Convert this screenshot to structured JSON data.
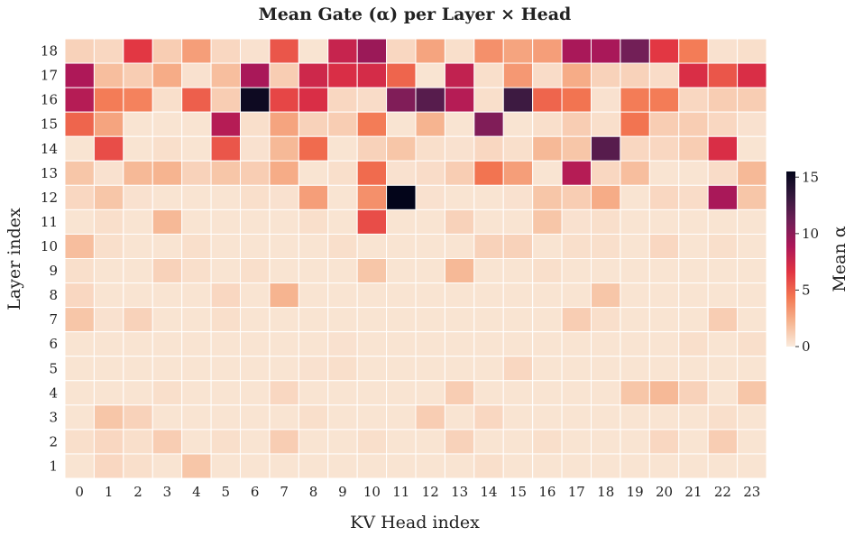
{
  "chart_data": {
    "type": "heatmap",
    "title": "Mean Gate (α) per Layer × Head",
    "xlabel": "KV Head index",
    "ylabel": "Layer index",
    "x_categories": [
      "0",
      "1",
      "2",
      "3",
      "4",
      "5",
      "6",
      "7",
      "8",
      "9",
      "10",
      "11",
      "12",
      "13",
      "14",
      "15",
      "16",
      "17",
      "18",
      "19",
      "20",
      "21",
      "22",
      "23"
    ],
    "y_categories": [
      "18",
      "17",
      "16",
      "15",
      "14",
      "13",
      "12",
      "11",
      "10",
      "9",
      "8",
      "7",
      "6",
      "5",
      "4",
      "3",
      "2",
      "1"
    ],
    "colorbar": {
      "label": "Mean α",
      "min": 0,
      "max": 15.5,
      "ticks": [
        "0",
        "5",
        "10",
        "15"
      ],
      "tick_values": [
        0,
        5,
        10,
        15
      ]
    },
    "colormap": [
      "#faebdd",
      "#f6b48f",
      "#f37651",
      "#e13342",
      "#ad1759",
      "#701f57",
      "#35193e",
      "#03051a"
    ],
    "grid_color": "#ffffff",
    "values": [
      [
        1.0,
        0.8,
        6.5,
        1.2,
        3.0,
        0.8,
        0.4,
        5.5,
        0.3,
        7.8,
        9.5,
        0.8,
        2.8,
        0.5,
        3.5,
        2.8,
        3.0,
        9.0,
        9.0,
        11.0,
        6.5,
        4.2,
        0.4,
        0.5
      ],
      [
        8.8,
        1.8,
        1.2,
        2.5,
        0.4,
        1.8,
        9.0,
        1.2,
        7.5,
        7.0,
        7.2,
        5.0,
        0.3,
        8.0,
        0.5,
        3.2,
        0.6,
        2.5,
        1.0,
        1.0,
        0.6,
        7.0,
        5.5,
        7.0
      ],
      [
        8.5,
        4.2,
        4.0,
        0.5,
        5.2,
        1.2,
        15.0,
        6.0,
        7.0,
        0.8,
        0.6,
        10.5,
        12.0,
        8.5,
        0.5,
        13.0,
        5.0,
        4.5,
        0.4,
        4.2,
        4.2,
        0.8,
        1.2,
        1.2
      ],
      [
        5.0,
        2.8,
        0.3,
        0.3,
        0.3,
        8.5,
        0.5,
        2.8,
        1.0,
        1.2,
        4.2,
        0.3,
        2.2,
        0.3,
        10.5,
        0.3,
        0.5,
        1.2,
        0.5,
        4.5,
        1.2,
        1.2,
        0.8,
        0.4
      ],
      [
        0.3,
        5.8,
        0.3,
        0.5,
        0.3,
        5.5,
        0.4,
        2.0,
        4.8,
        0.3,
        1.0,
        1.5,
        0.5,
        0.4,
        0.8,
        0.5,
        2.0,
        1.5,
        12.0,
        0.8,
        0.8,
        1.2,
        7.0,
        0.3
      ],
      [
        1.5,
        0.4,
        2.0,
        2.2,
        1.0,
        1.5,
        1.2,
        2.5,
        0.3,
        0.5,
        4.8,
        0.4,
        0.6,
        1.2,
        4.5,
        3.0,
        0.3,
        8.5,
        0.8,
        1.8,
        0.3,
        0.3,
        0.6,
        2.0
      ],
      [
        0.8,
        1.5,
        0.4,
        0.3,
        0.3,
        0.3,
        0.5,
        0.4,
        3.0,
        0.3,
        3.5,
        15.5,
        0.4,
        0.3,
        0.3,
        0.4,
        1.5,
        1.2,
        2.5,
        0.3,
        0.8,
        0.6,
        9.0,
        1.5
      ],
      [
        0.3,
        0.5,
        0.3,
        2.0,
        0.3,
        0.3,
        0.3,
        0.3,
        0.5,
        0.3,
        5.8,
        0.3,
        0.3,
        1.0,
        0.3,
        0.3,
        1.5,
        0.4,
        0.5,
        0.3,
        0.3,
        0.3,
        0.3,
        0.3
      ],
      [
        1.8,
        0.5,
        0.3,
        0.3,
        0.5,
        0.3,
        0.3,
        0.3,
        0.3,
        0.5,
        0.3,
        0.3,
        0.3,
        0.3,
        1.0,
        1.0,
        0.3,
        0.5,
        0.5,
        0.3,
        0.8,
        0.3,
        0.5,
        0.3
      ],
      [
        0.5,
        0.3,
        0.3,
        1.0,
        0.5,
        0.3,
        0.5,
        0.3,
        0.3,
        0.3,
        1.5,
        0.3,
        0.3,
        2.0,
        0.3,
        0.3,
        0.5,
        0.3,
        0.3,
        0.3,
        0.3,
        0.3,
        0.3,
        0.3
      ],
      [
        0.8,
        0.3,
        0.3,
        0.3,
        0.3,
        0.8,
        0.3,
        2.2,
        0.3,
        0.3,
        0.3,
        0.3,
        0.3,
        0.3,
        0.3,
        0.3,
        0.3,
        0.3,
        1.5,
        0.3,
        0.3,
        0.3,
        0.3,
        0.3
      ],
      [
        1.5,
        0.4,
        1.0,
        0.3,
        0.3,
        0.5,
        0.3,
        0.3,
        0.3,
        0.3,
        0.3,
        0.3,
        0.3,
        0.3,
        0.3,
        0.3,
        0.3,
        1.2,
        0.5,
        0.3,
        0.3,
        0.3,
        1.2,
        0.3
      ],
      [
        0.3,
        0.3,
        0.3,
        0.3,
        0.3,
        0.3,
        0.3,
        0.3,
        0.3,
        0.4,
        0.3,
        0.3,
        0.3,
        0.3,
        0.3,
        0.3,
        0.3,
        0.3,
        0.3,
        0.3,
        0.3,
        0.5,
        0.3,
        0.5
      ],
      [
        0.3,
        0.3,
        0.3,
        0.3,
        0.3,
        0.3,
        0.3,
        0.3,
        0.4,
        0.5,
        0.3,
        0.3,
        0.3,
        0.3,
        0.3,
        0.8,
        0.3,
        0.3,
        0.3,
        0.3,
        0.3,
        0.3,
        0.3,
        0.3
      ],
      [
        0.3,
        0.3,
        0.3,
        0.5,
        0.3,
        0.3,
        0.3,
        0.8,
        0.3,
        0.3,
        0.3,
        0.3,
        0.3,
        1.2,
        0.3,
        0.3,
        0.3,
        0.3,
        0.3,
        1.5,
        2.0,
        1.0,
        0.3,
        1.5
      ],
      [
        0.3,
        1.5,
        1.0,
        0.3,
        0.3,
        0.3,
        0.3,
        0.3,
        0.5,
        0.3,
        0.3,
        0.3,
        1.2,
        0.3,
        0.8,
        0.3,
        0.3,
        0.3,
        0.3,
        0.3,
        0.3,
        0.3,
        0.5,
        0.3
      ],
      [
        0.5,
        0.8,
        0.5,
        1.2,
        0.3,
        0.5,
        0.3,
        1.2,
        0.3,
        0.3,
        0.5,
        0.3,
        0.3,
        1.0,
        0.3,
        0.3,
        0.5,
        0.3,
        0.3,
        0.3,
        0.8,
        0.3,
        1.2,
        0.3
      ],
      [
        0.3,
        0.8,
        0.5,
        0.3,
        1.5,
        0.3,
        0.3,
        0.3,
        0.3,
        0.3,
        0.3,
        0.3,
        0.3,
        0.3,
        0.5,
        0.3,
        0.3,
        0.3,
        0.3,
        0.3,
        0.3,
        0.3,
        0.3,
        0.3
      ]
    ]
  }
}
